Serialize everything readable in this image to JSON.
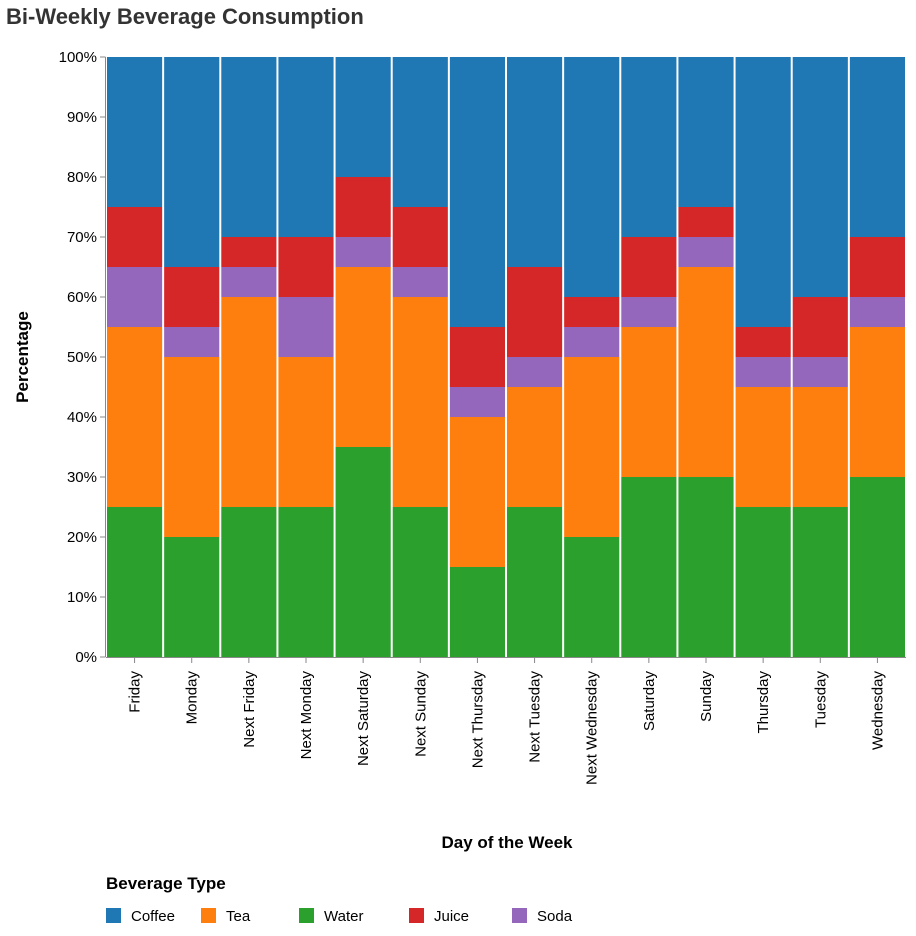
{
  "chart_data": {
    "type": "bar",
    "stacked": "normalized",
    "title": "Bi-Weekly Beverage Consumption",
    "xlabel": "Day of the Week",
    "ylabel": "Percentage",
    "ylim": [
      0,
      100
    ],
    "y_ticks": [
      "0%",
      "10%",
      "20%",
      "30%",
      "40%",
      "50%",
      "60%",
      "70%",
      "80%",
      "90%",
      "100%"
    ],
    "categories": [
      "Friday",
      "Monday",
      "Next Friday",
      "Next Monday",
      "Next Saturday",
      "Next Sunday",
      "Next Thursday",
      "Next Tuesday",
      "Next Wednesday",
      "Saturday",
      "Sunday",
      "Thursday",
      "Tuesday",
      "Wednesday"
    ],
    "series": [
      {
        "name": "Water",
        "color": "#2ca02c",
        "values": [
          25,
          20,
          25,
          25,
          35,
          25,
          15,
          25,
          20,
          30,
          30,
          25,
          25,
          30
        ]
      },
      {
        "name": "Tea",
        "color": "#ff7f0e",
        "values": [
          30,
          30,
          35,
          25,
          30,
          35,
          25,
          20,
          30,
          25,
          35,
          20,
          20,
          25
        ]
      },
      {
        "name": "Soda",
        "color": "#9467bd",
        "values": [
          10,
          5,
          5,
          10,
          5,
          5,
          5,
          5,
          5,
          5,
          5,
          5,
          5,
          5
        ]
      },
      {
        "name": "Juice",
        "color": "#d62728",
        "values": [
          10,
          10,
          5,
          10,
          10,
          10,
          10,
          15,
          5,
          10,
          5,
          5,
          10,
          10
        ]
      },
      {
        "name": "Coffee",
        "color": "#1f77b4",
        "values": [
          25,
          35,
          30,
          30,
          20,
          25,
          45,
          35,
          40,
          30,
          25,
          45,
          40,
          30
        ]
      }
    ],
    "legend": {
      "title": "Beverage Type",
      "placement": "bottom-left",
      "entries": [
        {
          "name": "Coffee",
          "color": "#1f77b4"
        },
        {
          "name": "Tea",
          "color": "#ff7f0e"
        },
        {
          "name": "Water",
          "color": "#2ca02c"
        },
        {
          "name": "Juice",
          "color": "#d62728"
        },
        {
          "name": "Soda",
          "color": "#9467bd"
        }
      ]
    },
    "grid": false
  }
}
